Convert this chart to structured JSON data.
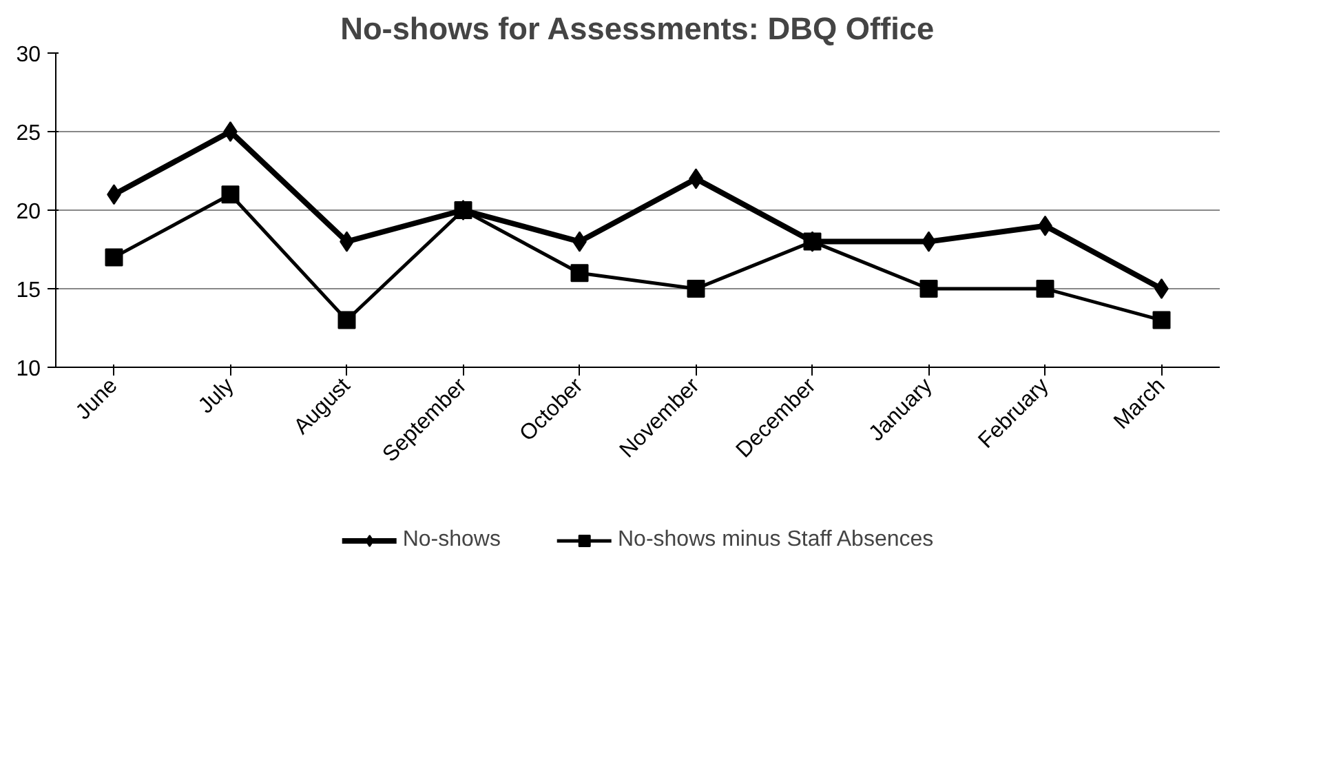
{
  "chart_data": {
    "type": "line",
    "title": "No-shows for Assessments: DBQ Office",
    "categories": [
      "June",
      "July",
      "August",
      "September",
      "October",
      "November",
      "December",
      "January",
      "February",
      "March"
    ],
    "series": [
      {
        "name": "No-shows",
        "color": "#000000",
        "marker": "diamond",
        "values": [
          21,
          25,
          18,
          20,
          18,
          22,
          18,
          18,
          19,
          15
        ]
      },
      {
        "name": "No-shows minus Staff Absences",
        "color": "#000000",
        "marker": "square",
        "values": [
          17,
          21,
          13,
          20,
          16,
          15,
          18,
          15,
          15,
          13
        ]
      }
    ],
    "ylim": [
      10,
      30
    ],
    "yticks": [
      10,
      15,
      20,
      25,
      30
    ],
    "grid": "y",
    "legend": "bottom"
  }
}
